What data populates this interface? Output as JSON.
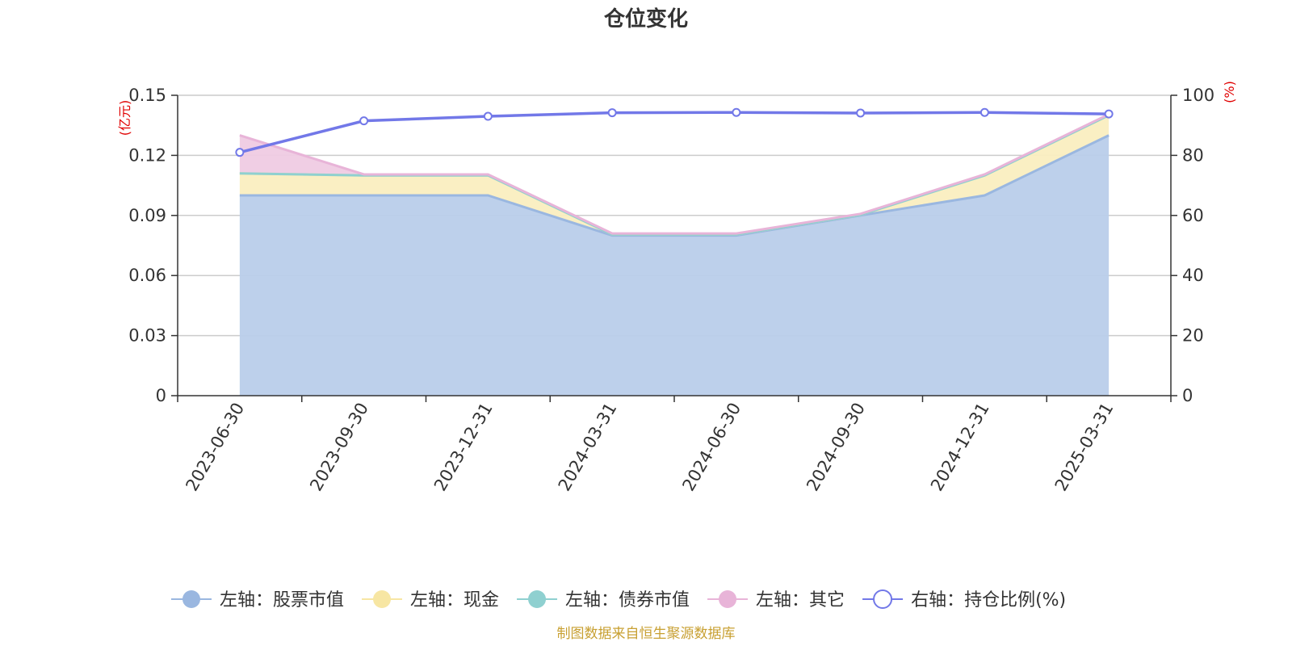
{
  "chart_data": {
    "type": "area",
    "title": "仓位变化",
    "left_unit": "(亿元)",
    "right_unit": "(%)",
    "categories": [
      "2023-06-30",
      "2023-09-30",
      "2023-12-31",
      "2024-03-31",
      "2024-06-30",
      "2024-09-30",
      "2024-12-31",
      "2025-03-31"
    ],
    "left_axis": {
      "min": 0,
      "max": 0.15,
      "ticks": [
        "0",
        "0.03",
        "0.06",
        "0.09",
        "0.12",
        "0.15"
      ]
    },
    "right_axis": {
      "min": 0,
      "max": 100,
      "ticks": [
        "0",
        "20",
        "40",
        "60",
        "80",
        "100"
      ]
    },
    "stacked": true,
    "grid": true,
    "legend_position": "bottom",
    "series": [
      {
        "name": "左轴：股票市值",
        "axis": "left",
        "kind": "area",
        "color": "#9ab7e0",
        "fill": "#b9cdea",
        "values": [
          0.1,
          0.1,
          0.1,
          0.08,
          0.08,
          0.09,
          0.1,
          0.13
        ]
      },
      {
        "name": "左轴：现金",
        "axis": "left",
        "kind": "area",
        "color": "#f7e6a3",
        "fill": "#faeec0",
        "values": [
          0.011,
          0.01,
          0.01,
          0.0005,
          0.0005,
          0.0003,
          0.01,
          0.01
        ]
      },
      {
        "name": "左轴：债券市值",
        "axis": "left",
        "kind": "area",
        "color": "#8fd0d0",
        "fill": "#a8dcdc",
        "values": [
          0,
          0,
          0,
          0,
          0,
          0,
          0,
          0
        ]
      },
      {
        "name": "左轴：其它",
        "axis": "left",
        "kind": "area",
        "color": "#e8b4d8",
        "fill": "#efcbe3",
        "values": [
          0.019,
          0.0005,
          0.0005,
          0.0005,
          0.0005,
          0.0005,
          0.0005,
          0.0005
        ]
      },
      {
        "name": "右轴：持仓比例(%)",
        "axis": "right",
        "kind": "line",
        "color": "#7278e8",
        "values": [
          81.0,
          91.5,
          93.0,
          94.2,
          94.3,
          94.1,
          94.3,
          93.8
        ]
      }
    ],
    "source": "制图数据来自恒生聚源数据库"
  }
}
